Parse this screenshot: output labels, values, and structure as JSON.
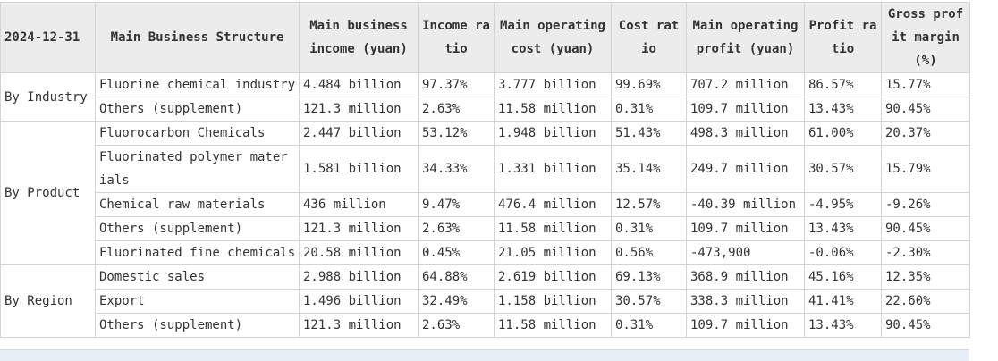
{
  "header": {
    "date": "2024-12-31",
    "columns": [
      "Main Business Structure",
      "Main business income (yuan)",
      "Income ratio",
      "Main operating cost (yuan)",
      "Cost ratio",
      "Main operating profit (yuan)",
      "Profit ratio",
      "Gross profit margin (%)"
    ]
  },
  "groups": [
    {
      "label": "By Industry",
      "rows": [
        [
          "Fluorine chemical industry",
          "4.484 billion",
          "97.37%",
          "3.777 billion",
          "99.69%",
          "707.2 million",
          "86.57%",
          "15.77%"
        ],
        [
          "Others (supplement)",
          "121.3 million",
          "2.63%",
          "11.58 million",
          "0.31%",
          "109.7 million",
          "13.43%",
          "90.45%"
        ]
      ]
    },
    {
      "label": "By Product",
      "rows": [
        [
          "Fluorocarbon Chemicals",
          "2.447 billion",
          "53.12%",
          "1.948 billion",
          "51.43%",
          "498.3 million",
          "61.00%",
          "20.37%"
        ],
        [
          "Fluorinated polymer materials",
          "1.581 billion",
          "34.33%",
          "1.331 billion",
          "35.14%",
          "249.7 million",
          "30.57%",
          "15.79%"
        ],
        [
          "Chemical raw materials",
          "436 million",
          "9.47%",
          "476.4 million",
          "12.57%",
          "-40.39 million",
          "-4.95%",
          "-9.26%"
        ],
        [
          "Others (supplement)",
          "121.3 million",
          "2.63%",
          "11.58 million",
          "0.31%",
          "109.7 million",
          "13.43%",
          "90.45%"
        ],
        [
          "Fluorinated fine chemicals",
          "20.58 million",
          "0.45%",
          "21.05 million",
          "0.56%",
          "-473,900",
          "-0.06%",
          "-2.30%"
        ]
      ]
    },
    {
      "label": "By Region",
      "rows": [
        [
          "Domestic sales",
          "2.988 billion",
          "64.88%",
          "2.619 billion",
          "69.13%",
          "368.9 million",
          "45.16%",
          "12.35%"
        ],
        [
          "Export",
          "1.496 billion",
          "32.49%",
          "1.158 billion",
          "30.57%",
          "338.3 million",
          "41.41%",
          "22.60%"
        ],
        [
          "Others (supplement)",
          "121.3 million",
          "2.63%",
          "11.58 million",
          "0.31%",
          "109.7 million",
          "13.43%",
          "90.45%"
        ]
      ]
    }
  ]
}
